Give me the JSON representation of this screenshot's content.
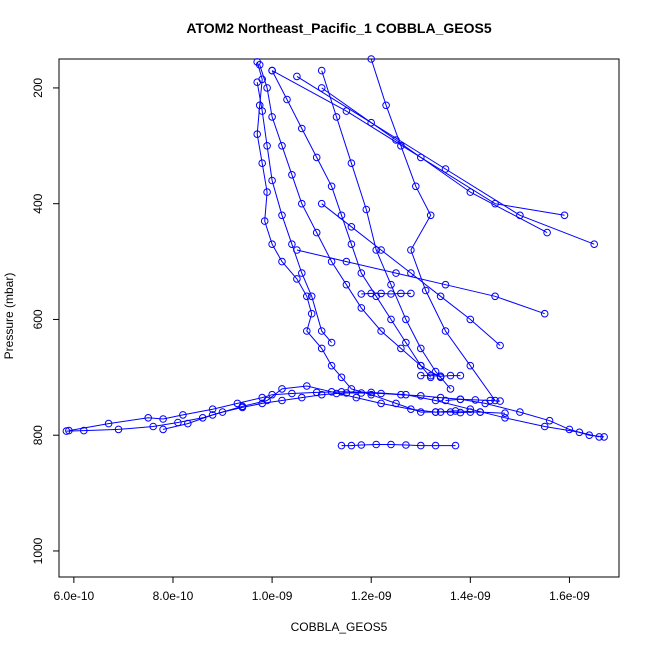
{
  "chart_data": {
    "type": "line",
    "title": "ATOM2 Northeast_Pacific_1 COBBLA_GEOS5",
    "xlabel": "COBBLA_GEOS5",
    "ylabel": "Pressure (mbar)",
    "xlim": [
      5.7e-10,
      1.7e-09
    ],
    "ylim": [
      1045,
      150
    ],
    "y_reversed": true,
    "x_ticks": [
      6e-10,
      8e-10,
      1e-09,
      1.2e-09,
      1.4e-09,
      1.6e-09
    ],
    "x_tick_labels": [
      "6.0e-10",
      "8.0e-10",
      "1.0e-09",
      "1.2e-09",
      "1.4e-09",
      "1.6e-09"
    ],
    "y_ticks": [
      200,
      400,
      600,
      800,
      1000
    ],
    "y_tick_labels": [
      "200",
      "400",
      "600",
      "800",
      "1000"
    ],
    "grid": false,
    "marker": "open-circle",
    "colors": {
      "series": "#0000ff",
      "axes": "#000000"
    },
    "series": [
      {
        "x": [
          5.85e-10,
          6.2e-10,
          6.9e-10,
          7.6e-10,
          8.1e-10,
          8.6e-10,
          9e-10,
          9.4e-10,
          9.8e-10,
          1.02e-09,
          1.06e-09,
          1.1e-09,
          1.13e-09,
          1.15e-09,
          1.18e-09,
          1.22e-09,
          1.26e-09,
          1.3e-09,
          1.34e-09,
          1.38e-09,
          1.43e-09,
          1.5e-09,
          1.56e-09,
          1.6e-09,
          1.64e-09,
          1.67e-09
        ],
        "y": [
          793,
          792,
          790,
          785,
          778,
          770,
          760,
          752,
          745,
          740,
          735,
          730,
          728,
          727,
          727,
          728,
          730,
          732,
          735,
          738,
          745,
          760,
          775,
          790,
          800,
          803
        ]
      },
      {
        "x": [
          5.9e-10,
          6.7e-10,
          7.5e-10,
          7.8e-10,
          8.2e-10,
          8.8e-10,
          9.3e-10,
          9.8e-10,
          1e-09,
          1.04e-09,
          1.09e-09,
          1.14e-09,
          1.2e-09,
          1.27e-09,
          1.33e-09,
          1.4e-09,
          1.47e-09,
          1.55e-09,
          1.62e-09,
          1.66e-09
        ],
        "y": [
          792,
          780,
          770,
          772,
          765,
          755,
          745,
          735,
          730,
          728,
          726,
          725,
          726,
          730,
          740,
          755,
          770,
          785,
          795,
          803
        ]
      },
      {
        "x": [
          7.8e-10,
          8.3e-10,
          8.8e-10,
          9.4e-10,
          9.9e-10,
          1.02e-09,
          1.07e-09,
          1.12e-09,
          1.17e-09,
          1.22e-09,
          1.28e-09,
          1.33e-09,
          1.37e-09,
          1.42e-09,
          1.47e-09
        ],
        "y": [
          790,
          780,
          765,
          750,
          740,
          720,
          715,
          725,
          735,
          745,
          755,
          760,
          758,
          760,
          762
        ]
      },
      {
        "x": [
          9.7e-10,
          9.8e-10,
          9.75e-10,
          9.7e-10,
          9.8e-10,
          9.9e-10,
          9.85e-10,
          1e-09,
          1.02e-09,
          1.05e-09,
          1.07e-09,
          1.08e-09,
          1.07e-09,
          1.1e-09,
          1.12e-09,
          1.14e-09,
          1.16e-09,
          1.2e-09,
          1.25e-09,
          1.3e-09,
          1.33e-09
        ],
        "y": [
          155,
          185,
          230,
          280,
          330,
          380,
          430,
          470,
          500,
          530,
          560,
          590,
          620,
          650,
          680,
          700,
          720,
          730,
          745,
          760,
          760
        ]
      },
      {
        "x": [
          9.75e-10,
          9.9e-10,
          1e-09,
          1.02e-09,
          1.04e-09,
          1.06e-09,
          1.09e-09,
          1.12e-09,
          1.15e-09,
          1.18e-09,
          1.22e-09,
          1.26e-09,
          1.3e-09,
          1.34e-09
        ],
        "y": [
          160,
          200,
          250,
          300,
          350,
          400,
          450,
          500,
          540,
          580,
          620,
          650,
          680,
          700
        ]
      },
      {
        "x": [
          1e-09,
          1.03e-09,
          1.06e-09,
          1.09e-09,
          1.12e-09,
          1.14e-09,
          1.16e-09,
          1.18e-09,
          1.21e-09,
          1.24e-09,
          1.27e-09,
          1.3e-09,
          1.32e-09
        ],
        "y": [
          170,
          220,
          270,
          320,
          370,
          420,
          470,
          520,
          560,
          600,
          640,
          680,
          700
        ]
      },
      {
        "x": [
          1.1e-09,
          1.13e-09,
          1.16e-09,
          1.19e-09,
          1.21e-09,
          1.24e-09,
          1.27e-09,
          1.3e-09,
          1.33e-09,
          1.36e-09
        ],
        "y": [
          170,
          250,
          330,
          410,
          480,
          540,
          600,
          650,
          690,
          720
        ]
      },
      {
        "x": [
          1.2e-09,
          1.23e-09,
          1.26e-09,
          1.29e-09,
          1.32e-09,
          1.28e-09,
          1.31e-09,
          1.35e-09,
          1.4e-09,
          1.45e-09
        ],
        "y": [
          150,
          230,
          300,
          370,
          420,
          480,
          550,
          620,
          680,
          740
        ]
      },
      {
        "x": [
          1e-09,
          1.15e-09,
          1.3e-09,
          1.45e-09,
          1.59e-09
        ],
        "y": [
          170,
          240,
          320,
          400,
          420
        ]
      },
      {
        "x": [
          1.05e-09,
          1.2e-09,
          1.35e-09,
          1.5e-09,
          1.65e-09
        ],
        "y": [
          180,
          260,
          340,
          420,
          470
        ]
      },
      {
        "x": [
          1.1e-09,
          1.25e-09,
          1.4e-09,
          1.555e-09
        ],
        "y": [
          200,
          290,
          380,
          450
        ]
      },
      {
        "x": [
          1.55e-09,
          1.45e-09,
          1.35e-09,
          1.25e-09,
          1.15e-09,
          1.05e-09
        ],
        "y": [
          590,
          560,
          540,
          520,
          500,
          480
        ]
      },
      {
        "x": [
          1.46e-09,
          1.4e-09,
          1.34e-09,
          1.28e-09,
          1.22e-09,
          1.16e-09,
          1.1e-09
        ],
        "y": [
          645,
          600,
          560,
          520,
          480,
          440,
          400
        ]
      },
      {
        "x": [
          1.14e-09,
          1.16e-09,
          1.18e-09,
          1.21e-09,
          1.24e-09,
          1.27e-09,
          1.3e-09,
          1.33e-09,
          1.37e-09
        ],
        "y": [
          818,
          818,
          817,
          816,
          816,
          817,
          818,
          818,
          818
        ]
      },
      {
        "x": [
          9.7e-10,
          9.8e-10,
          9.9e-10,
          1e-09,
          1.02e-09,
          1.04e-09,
          1.06e-09,
          1.08e-09,
          1.1e-09,
          1.12e-09
        ],
        "y": [
          190,
          240,
          300,
          360,
          420,
          470,
          520,
          560,
          620,
          640
        ]
      },
      {
        "x": [
          1.35e-09,
          1.38e-09,
          1.41e-09,
          1.44e-09,
          1.46e-09
        ],
        "y": [
          740,
          738,
          739,
          740,
          741
        ]
      },
      {
        "x": [
          1.34e-09,
          1.36e-09,
          1.38e-09,
          1.4e-09,
          1.42e-09
        ],
        "y": [
          760,
          760,
          761,
          760,
          760
        ]
      },
      {
        "x": [
          1.3e-09,
          1.32e-09,
          1.34e-09,
          1.36e-09,
          1.38e-09
        ],
        "y": [
          697,
          697,
          698,
          697,
          697
        ]
      },
      {
        "x": [
          1.28e-09,
          1.26e-09,
          1.24e-09,
          1.22e-09,
          1.2e-09,
          1.18e-09
        ],
        "y": [
          555,
          555,
          556,
          555,
          555,
          556
        ]
      }
    ]
  }
}
